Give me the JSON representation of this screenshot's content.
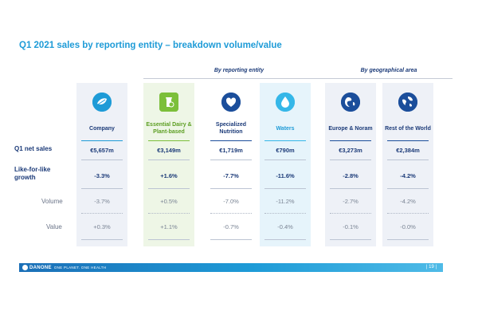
{
  "title": "Q1 2021 sales by reporting entity – breakdown volume/value",
  "groups": {
    "by_entity": "By reporting entity",
    "by_geo": "By geographical area"
  },
  "row_labels": {
    "net_sales": "Q1 net sales",
    "lfl": "Like-for-like growth",
    "volume": "Volume",
    "value": "Value"
  },
  "columns": [
    {
      "name": "Company",
      "icon": "globe-leaf-icon",
      "color": "#1e9bd7",
      "net_sales": "€5,657m",
      "lfl": "-3.3%",
      "volume": "-3.7%",
      "value": "+0.3%"
    },
    {
      "name": "Essential Dairy & Plant-based",
      "icon": "dairy-icon",
      "color": "#7cbf3a",
      "net_sales": "€3,149m",
      "lfl": "+1.6%",
      "volume": "+0.5%",
      "value": "+1.1%"
    },
    {
      "name": "Specialized Nutrition",
      "icon": "heart-icon",
      "color": "#1b4e9b",
      "net_sales": "€1,719m",
      "lfl": "-7.7%",
      "volume": "-7.0%",
      "value": "-0.7%"
    },
    {
      "name": "Waters",
      "icon": "water-drop-icon",
      "color": "#35b7e8",
      "net_sales": "€790m",
      "lfl": "-11.6%",
      "volume": "-11.2%",
      "value": "-0.4%"
    },
    {
      "name": "Europe & Noram",
      "icon": "globe-europe-icon",
      "color": "#1b4e9b",
      "net_sales": "€3,273m",
      "lfl": "-2.8%",
      "volume": "-2.7%",
      "value": "-0.1%"
    },
    {
      "name": "Rest of the World",
      "icon": "globe-world-icon",
      "color": "#1b4e9b",
      "net_sales": "€2,384m",
      "lfl": "-4.2%",
      "volume": "-4.2%",
      "value": "-0.0%"
    }
  ],
  "footer": {
    "brand": "DANONE",
    "tagline": "ONE PLANET. ONE HEALTH",
    "page": "| 19 |"
  }
}
